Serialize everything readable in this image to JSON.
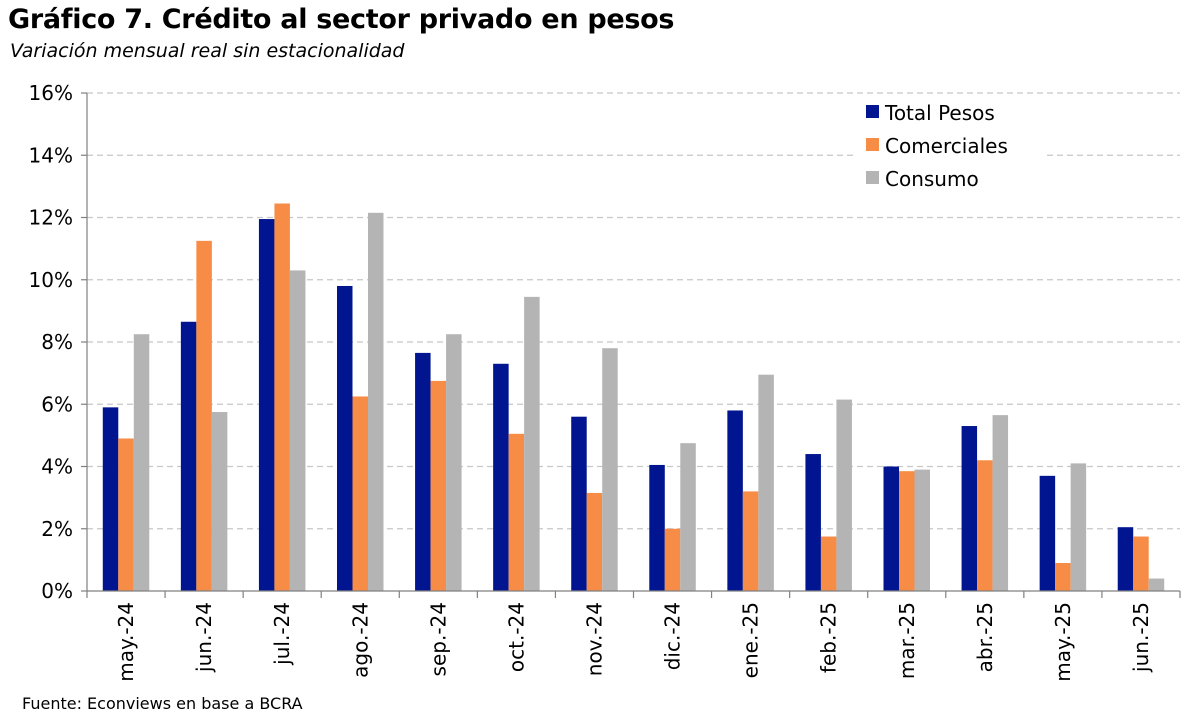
{
  "header": {
    "title": "Gráfico 7. Crédito al sector privado en pesos",
    "subtitle": "Variación mensual real sin estacionalidad"
  },
  "footer": {
    "source": "Fuente: Econviews en base a BCRA"
  },
  "chart_data": {
    "type": "bar",
    "title": "Gráfico 7. Crédito al sector privado en pesos",
    "subtitle": "Variación mensual real sin estacionalidad",
    "xlabel": "",
    "ylabel": "",
    "ylim": [
      0,
      16
    ],
    "yticks": [
      0,
      2,
      4,
      6,
      8,
      10,
      12,
      14,
      16
    ],
    "ytick_labels": [
      "0%",
      "2%",
      "4%",
      "6%",
      "8%",
      "10%",
      "12%",
      "14%",
      "16%"
    ],
    "grid": true,
    "legend_position": "top-right",
    "categories": [
      "may.-24",
      "jun.-24",
      "jul.-24",
      "ago.-24",
      "sep.-24",
      "oct.-24",
      "nov.-24",
      "dic.-24",
      "ene.-25",
      "feb.-25",
      "mar.-25",
      "abr.-25",
      "may.-25",
      "jun.-25"
    ],
    "series": [
      {
        "name": "Total Pesos",
        "color": "#00158f",
        "values": [
          5.9,
          8.65,
          11.95,
          9.8,
          7.65,
          7.3,
          5.6,
          4.05,
          5.8,
          4.4,
          4.0,
          5.3,
          3.7,
          2.05
        ]
      },
      {
        "name": "Comerciales",
        "color": "#f68c46",
        "values": [
          4.9,
          11.25,
          12.45,
          6.25,
          6.75,
          5.05,
          3.15,
          2.0,
          3.2,
          1.75,
          3.85,
          4.2,
          0.9,
          1.75
        ]
      },
      {
        "name": "Consumo",
        "color": "#b4b4b4",
        "values": [
          8.25,
          5.75,
          10.3,
          12.15,
          8.25,
          9.45,
          7.8,
          4.75,
          6.95,
          6.15,
          3.9,
          5.65,
          4.1,
          0.4
        ]
      }
    ]
  }
}
